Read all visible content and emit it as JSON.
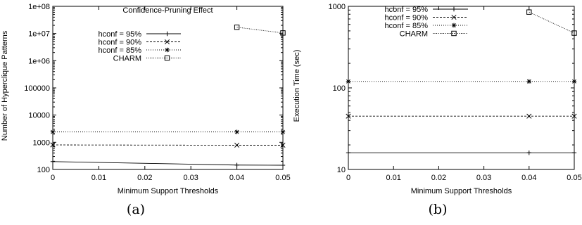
{
  "chart_data": [
    {
      "type": "line",
      "title": "Confidence-Pruning Effect",
      "xlabel": "Minimum Support Thresholds",
      "ylabel": "Number of Hyperclique Patterns",
      "caption": "(a)",
      "yscale": "log",
      "xlim": [
        0,
        0.05
      ],
      "ylim": [
        100,
        100000000
      ],
      "xticks": [
        0,
        0.01,
        0.02,
        0.03,
        0.04,
        0.05
      ],
      "xtick_labels": [
        "0",
        "0.01",
        "0.02",
        "0.03",
        "0.04",
        "0.05"
      ],
      "yticks": [
        100,
        1000,
        10000,
        100000,
        1000000,
        10000000,
        100000000
      ],
      "ytick_labels": [
        "100",
        "1000",
        "10000",
        "100000",
        "1e+06",
        "1e+07",
        "1e+08"
      ],
      "legend_position": "top-left",
      "grid": false,
      "series": [
        {
          "name": "hconf = 95%",
          "marker": "plus",
          "dash": "solid",
          "x": [
            0,
            0.04,
            0.05
          ],
          "y": [
            195,
            145,
            143
          ]
        },
        {
          "name": "hconf = 90%",
          "marker": "x",
          "dash": "dashed",
          "x": [
            0,
            0.04,
            0.05
          ],
          "y": [
            800,
            780,
            780
          ]
        },
        {
          "name": "hconf = 85%",
          "marker": "star",
          "dash": "dotted",
          "x": [
            0,
            0.04,
            0.05
          ],
          "y": [
            2400,
            2400,
            2400
          ]
        },
        {
          "name": "CHARM",
          "marker": "square",
          "dash": "fine-dotted",
          "x": [
            0.04,
            0.05
          ],
          "y": [
            17000000,
            10500000
          ]
        }
      ]
    },
    {
      "type": "line",
      "title": "",
      "xlabel": "Minimum Support Thresholds",
      "ylabel": "Execution Time (sec)",
      "caption": "(b)",
      "yscale": "log",
      "xlim": [
        0,
        0.05
      ],
      "ylim": [
        10,
        1000
      ],
      "xticks": [
        0,
        0.01,
        0.02,
        0.03,
        0.04,
        0.05
      ],
      "xtick_labels": [
        "0",
        "0.01",
        "0.02",
        "0.03",
        "0.04",
        "0.05"
      ],
      "yticks": [
        10,
        100,
        1000
      ],
      "ytick_labels": [
        "10",
        "100",
        "1000"
      ],
      "legend_position": "top-left",
      "grid": false,
      "series": [
        {
          "name": "hconf = 95%",
          "marker": "plus",
          "dash": "solid",
          "x": [
            0,
            0.04,
            0.05
          ],
          "y": [
            16,
            16,
            16
          ]
        },
        {
          "name": "hconf = 90%",
          "marker": "x",
          "dash": "dashed",
          "x": [
            0,
            0.04,
            0.05
          ],
          "y": [
            45,
            45,
            45
          ]
        },
        {
          "name": "hconf = 85%",
          "marker": "star",
          "dash": "dotted",
          "x": [
            0,
            0.04,
            0.05
          ],
          "y": [
            120,
            120,
            120
          ]
        },
        {
          "name": "CHARM",
          "marker": "square",
          "dash": "fine-dotted",
          "x": [
            0.04,
            0.05
          ],
          "y": [
            850,
            470
          ]
        }
      ]
    }
  ]
}
